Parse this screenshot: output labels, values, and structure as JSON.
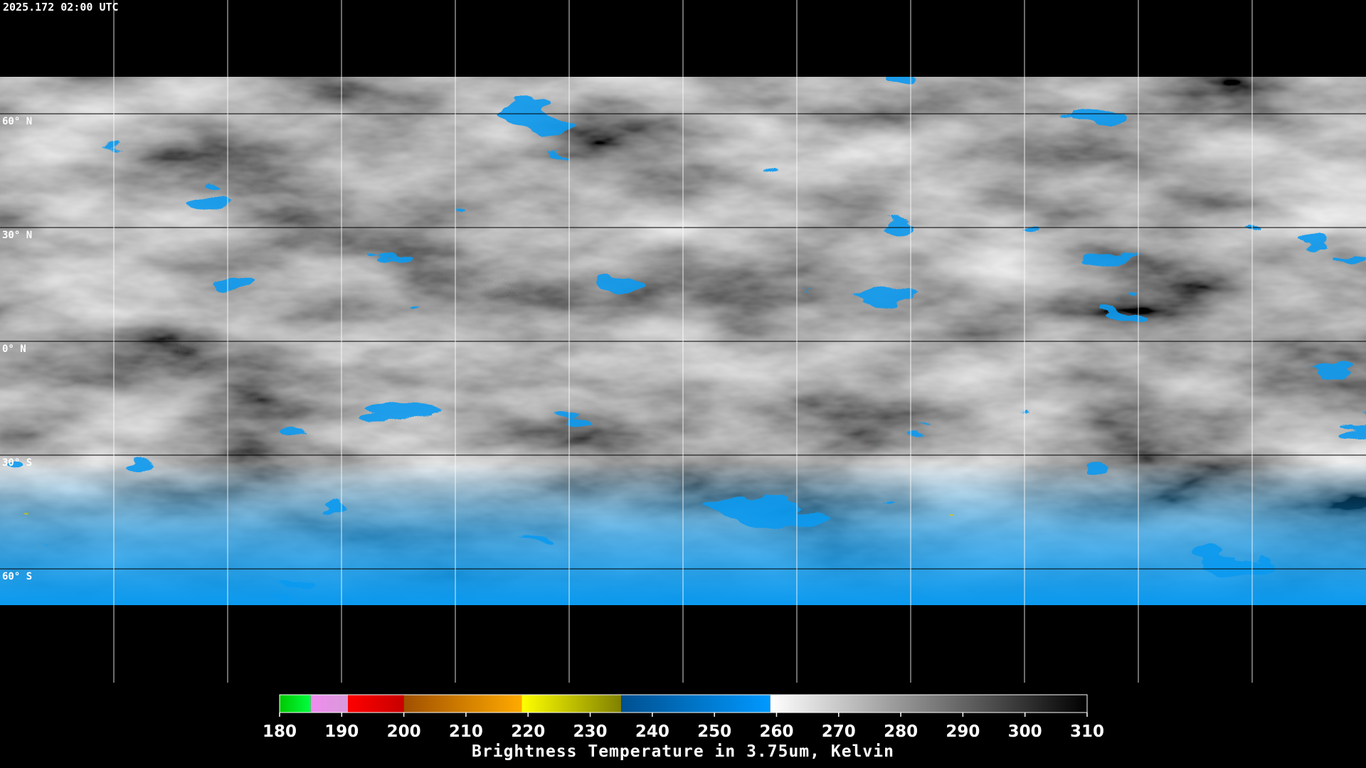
{
  "timestamp": "2025.172 02:00 UTC",
  "latitude_labels": [
    "60° N",
    "30° N",
    "0° N",
    "30° S",
    "60° S"
  ],
  "colorbar": {
    "title": "Brightness Temperature in 3.75um, Kelvin",
    "range": [
      180,
      310
    ],
    "ticks": [
      180,
      190,
      200,
      210,
      220,
      230,
      240,
      250,
      260,
      270,
      280,
      290,
      300,
      310
    ],
    "segments": [
      {
        "from": 180,
        "to": 185,
        "colors": [
          "#00c800",
          "#00ff40"
        ]
      },
      {
        "from": 185,
        "to": 191,
        "colors": [
          "#f08cf0",
          "#d89ad8"
        ]
      },
      {
        "from": 191,
        "to": 200,
        "colors": [
          "#ff0000",
          "#c80000"
        ]
      },
      {
        "from": 200,
        "to": 219,
        "colors": [
          "#a05000",
          "#ffaa00"
        ]
      },
      {
        "from": 219,
        "to": 235,
        "colors": [
          "#ffff00",
          "#808000"
        ]
      },
      {
        "from": 235,
        "to": 259,
        "colors": [
          "#005090",
          "#0099ff"
        ]
      },
      {
        "from": 259,
        "to": 310,
        "colors": [
          "#ffffff",
          "#000000"
        ]
      }
    ]
  }
}
